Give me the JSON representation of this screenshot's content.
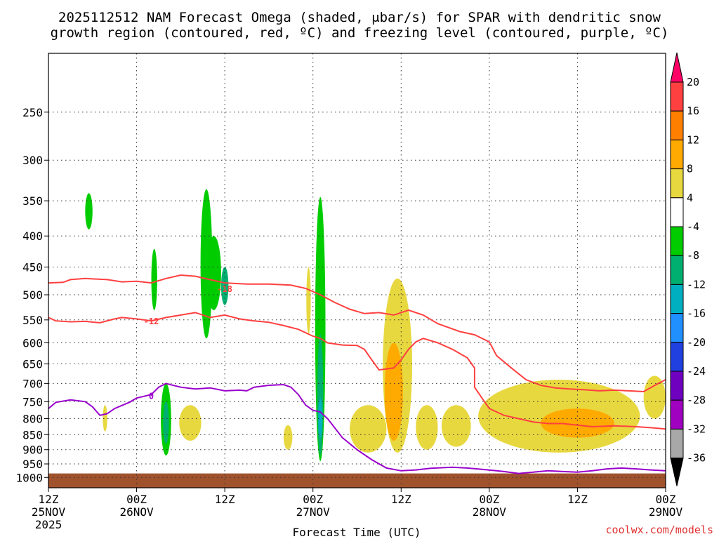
{
  "chart_data": {
    "type": "heatmap",
    "title_lines": [
      "2025112512 NAM Forecast Omega (shaded, μbar/s) for SPAR with dendritic snow",
      "growth region (contoured, red, ºC) and freezing level (contoured, purple, ºC)"
    ],
    "xlabel": "Forecast Time (UTC)",
    "x_range_hours": [
      0,
      84
    ],
    "x_ticks": [
      {
        "hour": 0,
        "label": "12Z",
        "date": "25NOV",
        "year": "2025"
      },
      {
        "hour": 12,
        "label": "00Z",
        "date": "26NOV",
        "year": ""
      },
      {
        "hour": 24,
        "label": "12Z",
        "date": "",
        "year": ""
      },
      {
        "hour": 36,
        "label": "00Z",
        "date": "27NOV",
        "year": ""
      },
      {
        "hour": 48,
        "label": "12Z",
        "date": "",
        "year": ""
      },
      {
        "hour": 60,
        "label": "00Z",
        "date": "28NOV",
        "year": ""
      },
      {
        "hour": 72,
        "label": "12Z",
        "date": "",
        "year": ""
      },
      {
        "hour": 84,
        "label": "00Z",
        "date": "29NOV",
        "year": ""
      }
    ],
    "y_ticks_hpa": [
      250,
      300,
      350,
      400,
      450,
      500,
      550,
      600,
      650,
      700,
      750,
      800,
      850,
      900,
      950,
      1000
    ],
    "colorbar": {
      "labels": [
        "20",
        "16",
        "12",
        "8",
        "4",
        "-4",
        "-8",
        "-12",
        "-16",
        "-20",
        "-24",
        "-28",
        "-32",
        "-36"
      ],
      "colors": [
        "#ff0066",
        "#ff4040",
        "#ff8000",
        "#ffaa00",
        "#e8d840",
        "#ffffff",
        "#00cc00",
        "#00b070",
        "#00b0c0",
        "#2090ff",
        "#2040e0",
        "#7000c0",
        "#a000c0",
        "#a8a8a8",
        "#000000"
      ]
    },
    "contours": [
      {
        "name": "dgz-top",
        "label": "-18",
        "color": "#ff4040",
        "label_hour": 24,
        "label_hpa": 488,
        "points": [
          [
            0,
            478
          ],
          [
            2,
            477
          ],
          [
            3,
            472
          ],
          [
            5,
            470
          ],
          [
            8,
            472
          ],
          [
            10,
            476
          ],
          [
            12,
            475
          ],
          [
            14,
            478
          ],
          [
            16,
            470
          ],
          [
            18,
            464
          ],
          [
            20,
            466
          ],
          [
            22,
            472
          ],
          [
            24,
            478
          ],
          [
            27,
            480
          ],
          [
            30,
            480
          ],
          [
            33,
            482
          ],
          [
            35,
            488
          ],
          [
            37,
            500
          ],
          [
            39,
            515
          ],
          [
            41,
            528
          ],
          [
            43,
            537
          ],
          [
            45,
            535
          ],
          [
            47,
            540
          ],
          [
            49,
            530
          ],
          [
            51,
            540
          ],
          [
            53,
            558
          ],
          [
            56,
            575
          ],
          [
            58,
            582
          ],
          [
            60,
            598
          ],
          [
            61,
            630
          ],
          [
            63,
            660
          ],
          [
            65,
            690
          ],
          [
            67,
            705
          ],
          [
            69,
            712
          ],
          [
            71,
            715
          ],
          [
            73,
            717
          ],
          [
            75,
            720
          ],
          [
            77,
            718
          ],
          [
            79,
            720
          ],
          [
            81,
            722
          ],
          [
            83,
            700
          ],
          [
            84,
            690
          ]
        ]
      },
      {
        "name": "dgz-bottom",
        "label": "-12",
        "color": "#ff4040",
        "label_hour": 14,
        "label_hpa": 552,
        "points": [
          [
            0,
            545
          ],
          [
            1,
            552
          ],
          [
            3,
            554
          ],
          [
            5,
            553
          ],
          [
            7,
            556
          ],
          [
            9,
            548
          ],
          [
            10,
            545
          ],
          [
            12,
            548
          ],
          [
            14,
            552
          ],
          [
            16,
            545
          ],
          [
            18,
            540
          ],
          [
            20,
            535
          ],
          [
            22,
            545
          ],
          [
            24,
            540
          ],
          [
            26,
            548
          ],
          [
            28,
            552
          ],
          [
            30,
            555
          ],
          [
            32,
            562
          ],
          [
            34,
            570
          ],
          [
            36,
            585
          ],
          [
            37,
            590
          ],
          [
            38,
            600
          ],
          [
            40,
            605
          ],
          [
            42,
            606
          ],
          [
            43,
            615
          ],
          [
            44,
            640
          ],
          [
            45,
            665
          ],
          [
            47,
            660
          ],
          [
            48,
            640
          ],
          [
            49,
            615
          ],
          [
            50,
            598
          ],
          [
            51,
            590
          ],
          [
            53,
            600
          ],
          [
            55,
            615
          ],
          [
            57,
            635
          ],
          [
            58,
            660
          ],
          [
            58,
            710
          ],
          [
            59,
            740
          ],
          [
            60,
            770
          ],
          [
            62,
            790
          ],
          [
            64,
            800
          ],
          [
            66,
            810
          ],
          [
            68,
            815
          ],
          [
            70,
            815
          ],
          [
            72,
            820
          ],
          [
            74,
            825
          ],
          [
            77,
            822
          ],
          [
            80,
            825
          ],
          [
            82,
            828
          ],
          [
            84,
            832
          ]
        ]
      },
      {
        "name": "freezing-level",
        "label": "0",
        "color": "#9900cc",
        "label_hour": 14,
        "label_hpa": 733,
        "points": [
          [
            0,
            770
          ],
          [
            1,
            752
          ],
          [
            3,
            745
          ],
          [
            5,
            750
          ],
          [
            6,
            765
          ],
          [
            7,
            790
          ],
          [
            8,
            785
          ],
          [
            9,
            770
          ],
          [
            11,
            752
          ],
          [
            12,
            740
          ],
          [
            13,
            735
          ],
          [
            14,
            730
          ],
          [
            15,
            710
          ],
          [
            16,
            700
          ],
          [
            18,
            710
          ],
          [
            20,
            715
          ],
          [
            22,
            712
          ],
          [
            24,
            720
          ],
          [
            26,
            718
          ],
          [
            27,
            720
          ],
          [
            28,
            710
          ],
          [
            30,
            705
          ],
          [
            32,
            703
          ],
          [
            33,
            710
          ],
          [
            34,
            730
          ],
          [
            35,
            760
          ],
          [
            36,
            775
          ],
          [
            37,
            780
          ],
          [
            38,
            800
          ],
          [
            40,
            860
          ],
          [
            42,
            900
          ],
          [
            44,
            935
          ],
          [
            46,
            965
          ],
          [
            48,
            975
          ],
          [
            50,
            972
          ],
          [
            52,
            966
          ],
          [
            55,
            962
          ],
          [
            57,
            965
          ],
          [
            59,
            970
          ],
          [
            61,
            975
          ],
          [
            62,
            978
          ],
          [
            64,
            985
          ],
          [
            66,
            980
          ],
          [
            68,
            975
          ],
          [
            70,
            978
          ],
          [
            72,
            980
          ],
          [
            74,
            975
          ],
          [
            76,
            968
          ],
          [
            78,
            965
          ],
          [
            80,
            968
          ],
          [
            82,
            972
          ],
          [
            84,
            975
          ]
        ]
      }
    ],
    "shaded_regions": [
      {
        "hour": 5.5,
        "hpa_top": 340,
        "hpa_bottom": 390,
        "width": 1.0,
        "bin": "-8"
      },
      {
        "hour": 14.4,
        "hpa_top": 420,
        "hpa_bottom": 530,
        "width": 0.8,
        "bin": "-8"
      },
      {
        "hour": 16.0,
        "hpa_top": 700,
        "hpa_bottom": 920,
        "width": 1.4,
        "bin": "-8"
      },
      {
        "hour": 16.0,
        "hpa_top": 750,
        "hpa_bottom": 880,
        "width": 0.8,
        "bin": "-12"
      },
      {
        "hour": 21.5,
        "hpa_top": 335,
        "hpa_bottom": 590,
        "width": 1.6,
        "bin": "-8"
      },
      {
        "hour": 22.5,
        "hpa_top": 400,
        "hpa_bottom": 530,
        "width": 2.0,
        "bin": "-8"
      },
      {
        "hour": 24.0,
        "hpa_top": 450,
        "hpa_bottom": 520,
        "width": 1.0,
        "bin": "-12"
      },
      {
        "hour": 37.0,
        "hpa_top": 345,
        "hpa_bottom": 940,
        "width": 1.4,
        "bin": "-8"
      },
      {
        "hour": 37.0,
        "hpa_top": 580,
        "hpa_bottom": 920,
        "width": 0.8,
        "bin": "-12"
      },
      {
        "hour": 37.0,
        "hpa_top": 740,
        "hpa_bottom": 860,
        "width": 0.5,
        "bin": "-16"
      },
      {
        "hour": 7.7,
        "hpa_top": 760,
        "hpa_bottom": 840,
        "width": 0.6,
        "bin": "4"
      },
      {
        "hour": 19.3,
        "hpa_top": 760,
        "hpa_bottom": 870,
        "width": 3.0,
        "bin": "4"
      },
      {
        "hour": 32.6,
        "hpa_top": 820,
        "hpa_bottom": 900,
        "width": 1.2,
        "bin": "4"
      },
      {
        "hour": 35.4,
        "hpa_top": 450,
        "hpa_bottom": 580,
        "width": 0.6,
        "bin": "4"
      },
      {
        "hour": 43.5,
        "hpa_top": 760,
        "hpa_bottom": 910,
        "width": 5.0,
        "bin": "4"
      },
      {
        "hour": 47.5,
        "hpa_top": 470,
        "hpa_bottom": 910,
        "width": 4.0,
        "bin": "4"
      },
      {
        "hour": 47.0,
        "hpa_top": 600,
        "hpa_bottom": 870,
        "width": 2.5,
        "bin": "8"
      },
      {
        "hour": 51.5,
        "hpa_top": 760,
        "hpa_bottom": 900,
        "width": 3.0,
        "bin": "4"
      },
      {
        "hour": 55.5,
        "hpa_top": 760,
        "hpa_bottom": 890,
        "width": 4.0,
        "bin": "4"
      },
      {
        "hour": 69.5,
        "hpa_top": 690,
        "hpa_bottom": 910,
        "width": 22.0,
        "bin": "4"
      },
      {
        "hour": 72.0,
        "hpa_top": 770,
        "hpa_bottom": 860,
        "width": 10.0,
        "bin": "8"
      },
      {
        "hour": 82.5,
        "hpa_top": 680,
        "hpa_bottom": 800,
        "width": 3.0,
        "bin": "4"
      }
    ],
    "terrain": {
      "color": "#a0522d",
      "hpa_top": 985
    }
  },
  "credit": "coolwx.com/models"
}
